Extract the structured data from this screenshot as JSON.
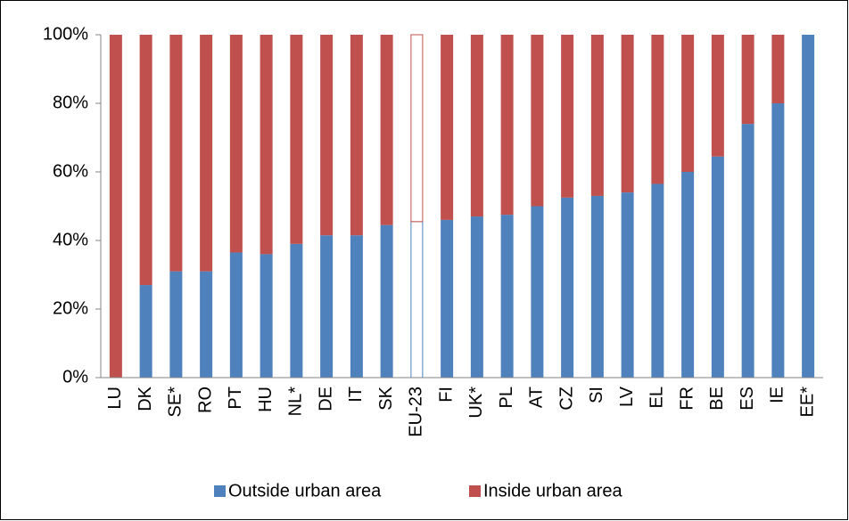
{
  "chart_data": {
    "type": "stacked_bar",
    "categories": [
      "LU",
      "DK",
      "SE*",
      "RO",
      "PT",
      "HU",
      "NL*",
      "DE",
      "IT",
      "SK",
      "EU-23",
      "FI",
      "UK*",
      "PL",
      "AT",
      "CZ",
      "SI",
      "LV",
      "EL",
      "FR",
      "BE",
      "ES",
      "IE",
      "EE*"
    ],
    "series": [
      {
        "name": "Outside urban area",
        "color": "#4f81bd",
        "values": [
          0,
          27,
          31,
          31,
          36.5,
          36,
          39,
          41.5,
          41.5,
          44.5,
          45.5,
          46,
          47,
          47.5,
          50,
          52.5,
          53,
          54,
          56.5,
          60,
          64.5,
          74,
          80,
          100
        ]
      },
      {
        "name": "Inside urban area",
        "color": "#c0504d",
        "values": [
          100,
          73,
          69,
          69,
          63.5,
          64,
          61,
          58.5,
          58.5,
          55.5,
          54.5,
          54,
          53,
          52.5,
          50,
          47.5,
          47,
          46,
          43.5,
          40,
          35.5,
          26,
          20,
          0
        ]
      }
    ],
    "outlined": [
      "EU-23"
    ],
    "ylim": [
      0,
      100
    ],
    "yticks": [
      {
        "value": 0,
        "label": "0%"
      },
      {
        "value": 20,
        "label": "20%"
      },
      {
        "value": 40,
        "label": "40%"
      },
      {
        "value": 60,
        "label": "60%"
      },
      {
        "value": 80,
        "label": "80%"
      },
      {
        "value": 100,
        "label": "100%"
      }
    ],
    "legend": "bottom"
  }
}
